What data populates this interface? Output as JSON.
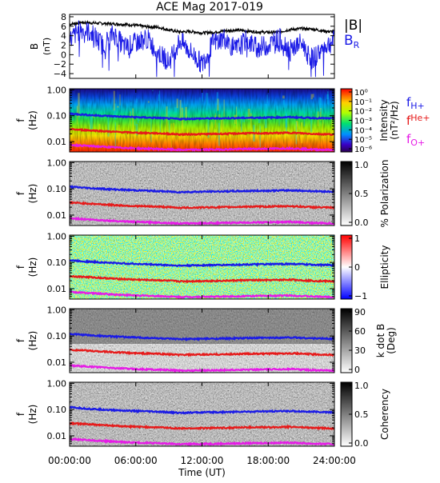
{
  "chart_data": [
    {
      "type": "line",
      "title": "ACE Mag 2017-019",
      "ylabel": "B",
      "yunit": "(nT)",
      "ylim": [
        -5,
        8.5
      ],
      "yticks": [
        8,
        6,
        4,
        2,
        0,
        -2,
        -4
      ],
      "series": [
        {
          "name": "|B|",
          "color": "#000000",
          "x": [
            0,
            1,
            2,
            3,
            4,
            5,
            6,
            7,
            8,
            9,
            10,
            11,
            12,
            13,
            14,
            15,
            16,
            17,
            18,
            19,
            20,
            21,
            22,
            23,
            24
          ],
          "values": [
            6.4,
            6.8,
            6.7,
            6.6,
            6.5,
            6.4,
            6.2,
            5.9,
            5.8,
            5.2,
            4.8,
            4.9,
            4.6,
            4.7,
            5.0,
            5.2,
            5.0,
            4.8,
            4.7,
            4.8,
            5.3,
            5.5,
            5.4,
            5.0,
            4.8
          ]
        },
        {
          "name": "B",
          "subscript": "R",
          "color": "#1a1ae6",
          "x": [
            0,
            1,
            2,
            3,
            4,
            5,
            6,
            7,
            8,
            9,
            10,
            11,
            12,
            13,
            14,
            15,
            16,
            17,
            18,
            19,
            20,
            21,
            22,
            23,
            24
          ],
          "values": [
            3.0,
            5.5,
            4.5,
            2.0,
            4.5,
            1.5,
            2.5,
            3.5,
            0.5,
            -1.5,
            3.0,
            0.5,
            -2.0,
            2.5,
            3.5,
            1.0,
            3.0,
            1.5,
            2.0,
            3.5,
            1.0,
            2.5,
            -1.0,
            1.5,
            3.0
          ]
        }
      ]
    },
    {
      "type": "heatmap",
      "ylabel": "f",
      "yunit": "(Hz)",
      "ylim": [
        0.004,
        1.1
      ],
      "yscale": "log",
      "yticks": [
        "1.00",
        "0.10",
        "0.01"
      ],
      "colorbar": {
        "label": "Intensity",
        "unit": "(nT²/Hz)",
        "ticks": [
          "10⁰",
          "10⁻¹",
          "10⁻²",
          "10⁻³",
          "10⁻⁴",
          "10⁻⁵",
          "10⁻⁶"
        ],
        "colormap": "rainbow"
      },
      "legend": [
        {
          "text": "f",
          "sub": "H+",
          "color": "#1a1ae6"
        },
        {
          "text": "f",
          "sub": "He+",
          "color": "#e61a1a"
        },
        {
          "text": "f",
          "sub": "O+",
          "color": "#e61ae6"
        }
      ]
    },
    {
      "type": "heatmap",
      "ylabel": "f",
      "yunit": "(Hz)",
      "yscale": "log",
      "yticks": [
        "1.00",
        "0.10",
        "0.01"
      ],
      "colorbar": {
        "label": "% Polarization",
        "ticks": [
          "1.0",
          "0.5",
          "0.0"
        ],
        "colormap": "gray"
      }
    },
    {
      "type": "heatmap",
      "ylabel": "f",
      "yunit": "(Hz)",
      "yscale": "log",
      "yticks": [
        "1.00",
        "0.10",
        "0.01"
      ],
      "colorbar": {
        "label": "Ellipticity",
        "ticks": [
          "1",
          "0",
          "−1"
        ],
        "colormap": "blue-white-red"
      }
    },
    {
      "type": "heatmap",
      "ylabel": "f",
      "yunit": "(Hz)",
      "yscale": "log",
      "yticks": [
        "1.00",
        "0.10",
        "0.01"
      ],
      "colorbar": {
        "label": "k dot B",
        "unit": "(Deg)",
        "ticks": [
          "90",
          "60",
          "30",
          "0"
        ],
        "colormap": "gray"
      }
    },
    {
      "type": "heatmap",
      "ylabel": "f",
      "yunit": "(Hz)",
      "yscale": "log",
      "yticks": [
        "1.00",
        "0.10",
        "0.01"
      ],
      "colorbar": {
        "label": "Coherency",
        "ticks": [
          "1.0",
          "0.5",
          "0.0"
        ],
        "colormap": "gray"
      }
    }
  ],
  "gyro_lines": {
    "x": [
      0,
      2,
      4,
      6,
      8,
      10,
      12,
      14,
      16,
      18,
      20,
      22,
      24
    ],
    "H+": [
      0.12,
      0.105,
      0.095,
      0.088,
      0.082,
      0.075,
      0.078,
      0.08,
      0.083,
      0.085,
      0.088,
      0.082,
      0.078
    ],
    "He+": [
      0.03,
      0.027,
      0.024,
      0.022,
      0.021,
      0.019,
      0.0195,
      0.02,
      0.021,
      0.021,
      0.022,
      0.02,
      0.019
    ],
    "O+": [
      0.0075,
      0.0067,
      0.006,
      0.0055,
      0.0052,
      0.0048,
      0.0049,
      0.005,
      0.0052,
      0.0053,
      0.0055,
      0.005,
      0.0048
    ]
  },
  "x_axis": {
    "label": "Time (UT)",
    "ticks": [
      "00:00:00",
      "06:00:00",
      "12:00:00",
      "18:00:00",
      "24:00:00"
    ],
    "tick_hours": [
      0,
      6,
      12,
      18,
      24
    ],
    "range_hours": [
      0,
      24
    ]
  }
}
